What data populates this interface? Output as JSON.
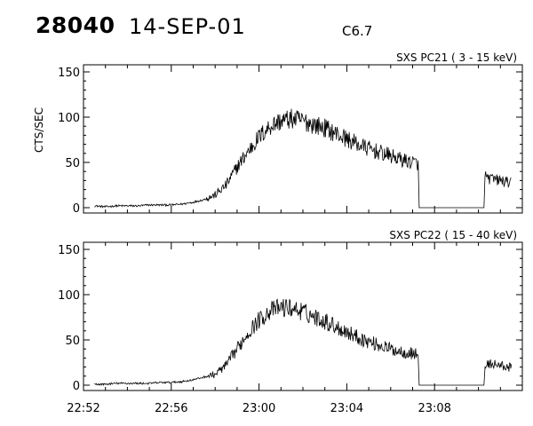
{
  "header": {
    "orbit": "28040",
    "date": "14-SEP-01",
    "flare_class": "C6.7"
  },
  "chart_data": [
    {
      "type": "line",
      "title": "SXS PC21  (  3 - 15 keV)",
      "ylabel": "CTS/SEC",
      "ylim": [
        0,
        150
      ],
      "yticks": [
        "0",
        "50",
        "100",
        "150"
      ],
      "xlim": [
        "22:52",
        "23:12"
      ],
      "series": [
        {
          "points": [
            [
              "22:52:30",
              2
            ],
            [
              "22:53:00",
              1
            ],
            [
              "22:53:30",
              2
            ],
            [
              "22:54:00",
              2
            ],
            [
              "22:54:30",
              2
            ],
            [
              "22:55:00",
              3
            ],
            [
              "22:55:30",
              3
            ],
            [
              "22:56:00",
              3
            ],
            [
              "22:56:30",
              4
            ],
            [
              "22:57:00",
              6
            ],
            [
              "22:57:30",
              9
            ],
            [
              "22:58:00",
              14
            ],
            [
              "22:58:30",
              25
            ],
            [
              "22:59:00",
              45
            ],
            [
              "22:59:30",
              62
            ],
            [
              "23:00:00",
              78
            ],
            [
              "23:00:30",
              90
            ],
            [
              "23:01:00",
              96
            ],
            [
              "23:01:30",
              98
            ],
            [
              "23:02:00",
              96
            ],
            [
              "23:02:30",
              92
            ],
            [
              "23:03:00",
              88
            ],
            [
              "23:03:30",
              82
            ],
            [
              "23:04:00",
              76
            ],
            [
              "23:04:30",
              70
            ],
            [
              "23:05:00",
              65
            ],
            [
              "23:05:30",
              61
            ],
            [
              "23:06:00",
              57
            ],
            [
              "23:06:30",
              53
            ],
            [
              "23:07:00",
              50
            ],
            [
              "23:07:15",
              49
            ],
            [
              "23:07:18",
              0
            ],
            [
              "23:10:15",
              0
            ],
            [
              "23:10:18",
              35
            ],
            [
              "23:10:30",
              32
            ],
            [
              "23:11:00",
              30
            ],
            [
              "23:11:30",
              27
            ]
          ]
        }
      ]
    },
    {
      "type": "line",
      "title": "SXS PC22  ( 15 - 40 keV)",
      "ylabel": "",
      "ylim": [
        0,
        150
      ],
      "yticks": [
        "0",
        "50",
        "100",
        "150"
      ],
      "xlim": [
        "22:52",
        "23:12"
      ],
      "xticks": [
        "22:52",
        "22:56",
        "23:00",
        "23:04",
        "23:08"
      ],
      "series": [
        {
          "points": [
            [
              "22:52:30",
              1
            ],
            [
              "22:53:00",
              1
            ],
            [
              "22:53:30",
              2
            ],
            [
              "22:54:00",
              2
            ],
            [
              "22:54:30",
              2
            ],
            [
              "22:55:00",
              2
            ],
            [
              "22:55:30",
              3
            ],
            [
              "22:56:00",
              3
            ],
            [
              "22:56:30",
              4
            ],
            [
              "22:57:00",
              6
            ],
            [
              "22:57:30",
              9
            ],
            [
              "22:58:00",
              12
            ],
            [
              "22:58:30",
              22
            ],
            [
              "22:59:00",
              40
            ],
            [
              "22:59:30",
              58
            ],
            [
              "23:00:00",
              72
            ],
            [
              "23:00:30",
              82
            ],
            [
              "23:01:00",
              86
            ],
            [
              "23:01:30",
              85
            ],
            [
              "23:02:00",
              81
            ],
            [
              "23:02:30",
              76
            ],
            [
              "23:03:00",
              71
            ],
            [
              "23:03:30",
              65
            ],
            [
              "23:04:00",
              59
            ],
            [
              "23:04:30",
              53
            ],
            [
              "23:05:00",
              48
            ],
            [
              "23:05:30",
              44
            ],
            [
              "23:06:00",
              40
            ],
            [
              "23:06:30",
              37
            ],
            [
              "23:07:00",
              35
            ],
            [
              "23:07:15",
              34
            ],
            [
              "23:07:18",
              0
            ],
            [
              "23:10:15",
              0
            ],
            [
              "23:10:18",
              20
            ],
            [
              "23:10:30",
              24
            ],
            [
              "23:11:00",
              22
            ],
            [
              "23:11:30",
              19
            ]
          ]
        }
      ]
    }
  ]
}
